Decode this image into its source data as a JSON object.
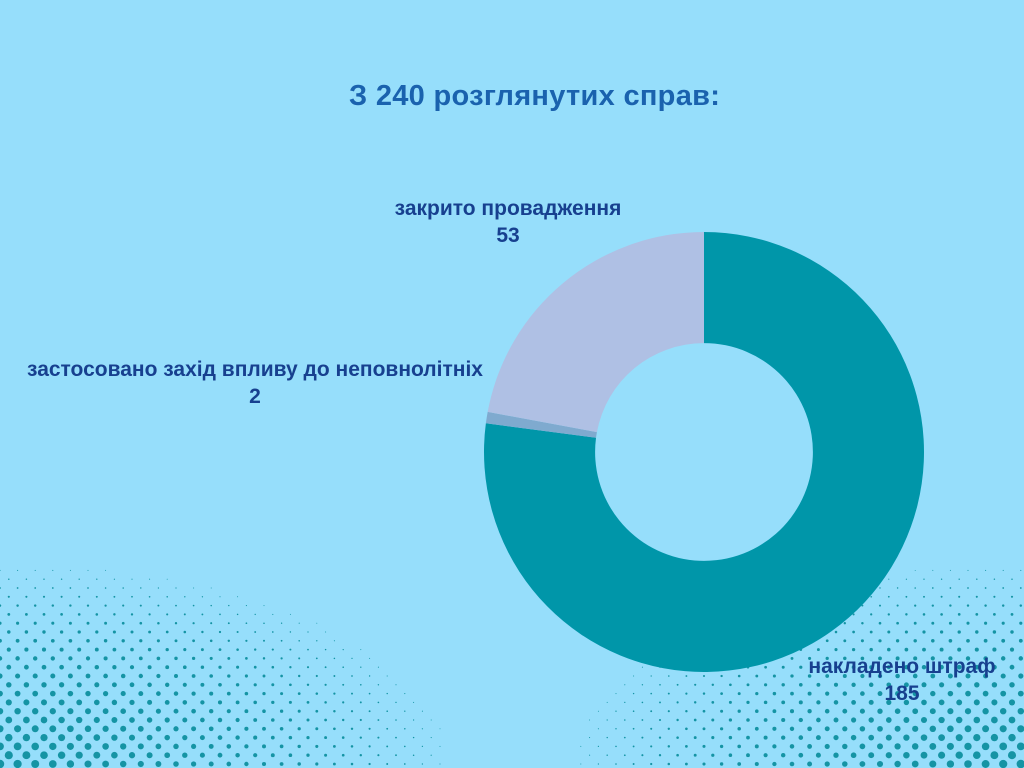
{
  "page": {
    "background_color": "#96DEFB"
  },
  "chart_data": {
    "type": "pie",
    "subtype": "donut",
    "title": "З 240 розглянутих справ:",
    "total": 240,
    "start_angle_deg": 0,
    "direction": "clockwise",
    "donut_hole_ratio": 0.495,
    "legend": "none",
    "labels_position": "around-chart",
    "segments": [
      {
        "label": "накладено штраф",
        "value": 185,
        "color": "#0096A9"
      },
      {
        "label": "застосовано захід впливу до неповнолітніх",
        "value": 2,
        "color": "#7FAACF"
      },
      {
        "label": "закрито провадження",
        "value": 53,
        "color": "#AFC0E4"
      }
    ]
  },
  "decor": {
    "halftone_dot_color": "#1594A4",
    "title_color": "#1A62AE",
    "label_color": "#17408F"
  }
}
